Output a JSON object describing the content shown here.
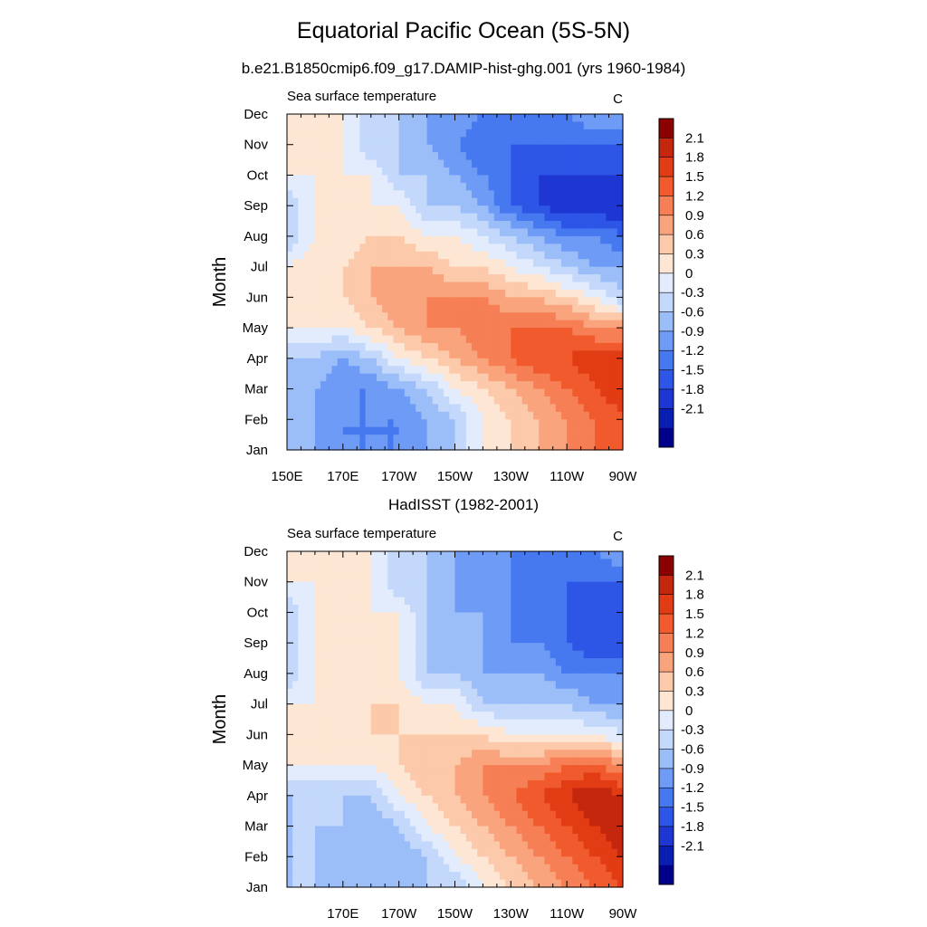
{
  "main_title": "Equatorial Pacific Ocean (5S-5N)",
  "subtitle": "b.e21.B1850cmip6.f09_g17.DAMIP-hist-ghg.001 (yrs 1960-1984)",
  "colors": [
    "#00008b",
    "#0a1eb4",
    "#1e37d2",
    "#2d55e6",
    "#4678f0",
    "#6e9bf5",
    "#9bbef9",
    "#c3d8fb",
    "#e2ecfc",
    "#fde6d3",
    "#fcc9aa",
    "#f9a47c",
    "#f67f55",
    "#f05a2d",
    "#e13c13",
    "#c4260e",
    "#8b0000"
  ],
  "colorbar_labels": [
    "2.1",
    "1.8",
    "1.5",
    "1.2",
    "0.9",
    "0.6",
    "0.3",
    "0",
    "-0.3",
    "-0.6",
    "-0.9",
    "-1.2",
    "-1.5",
    "-1.8",
    "-2.1"
  ],
  "chart_data": [
    {
      "type": "heatmap",
      "title": "",
      "left_label": "Sea surface temperature",
      "right_label": "C",
      "ylabel": "Month",
      "xlabel": "",
      "x_tick_labels": [
        "150E",
        "170E",
        "170W",
        "150W",
        "130W",
        "110W",
        "90W"
      ],
      "x_lon": [
        150,
        160,
        170,
        180,
        190,
        200,
        210,
        220,
        230,
        240,
        250,
        260,
        270
      ],
      "y_tick_labels": [
        "Jan",
        "Feb",
        "Mar",
        "Apr",
        "May",
        "Jun",
        "Jul",
        "Aug",
        "Sep",
        "Oct",
        "Nov",
        "Dec"
      ],
      "levels": [
        -2.1,
        -1.8,
        -1.5,
        -1.2,
        -0.9,
        -0.6,
        -0.3,
        0,
        0.3,
        0.6,
        0.9,
        1.2,
        1.5,
        1.8,
        2.1
      ],
      "z": [
        [
          -0.3,
          -0.6,
          -0.9,
          -0.9,
          -0.9,
          -0.6,
          -0.3,
          0.3,
          0.6,
          0.9,
          1.2,
          1.5,
          1.5
        ],
        [
          -0.3,
          -0.6,
          -0.9,
          -0.9,
          -0.9,
          -0.6,
          -0.3,
          0.3,
          0.6,
          0.9,
          1.2,
          1.5,
          1.8
        ],
        [
          -0.3,
          -0.6,
          -0.9,
          -0.9,
          -0.6,
          -0.3,
          0.3,
          0.6,
          0.9,
          1.2,
          1.5,
          1.8,
          2.0
        ],
        [
          -0.3,
          -0.3,
          -0.6,
          -0.3,
          0.3,
          0.6,
          0.9,
          1.2,
          1.5,
          1.8,
          1.8,
          2.0,
          2.0
        ],
        [
          0.3,
          0.3,
          0.3,
          0.6,
          0.9,
          1.2,
          1.2,
          1.5,
          1.5,
          1.5,
          1.5,
          1.2,
          1.2
        ],
        [
          0.3,
          0.3,
          0.6,
          0.9,
          1.2,
          1.2,
          1.2,
          1.2,
          0.9,
          0.9,
          0.6,
          0.3,
          -0.3
        ],
        [
          0.3,
          0.6,
          0.6,
          0.9,
          0.9,
          0.9,
          0.6,
          0.6,
          0.3,
          0,
          -0.3,
          -0.6,
          -0.6
        ],
        [
          -0.3,
          0.3,
          0.3,
          0.6,
          0.6,
          0.3,
          0.3,
          0,
          -0.3,
          -0.6,
          -0.9,
          -0.9,
          -1.2
        ],
        [
          -0.3,
          0.3,
          0.3,
          0.3,
          0.3,
          -0.3,
          -0.3,
          -0.6,
          -1.2,
          -1.5,
          -1.8,
          -1.8,
          -1.8
        ],
        [
          0.3,
          0.3,
          0.3,
          0.3,
          -0.3,
          -0.3,
          -0.6,
          -0.9,
          -1.2,
          -1.5,
          -1.5,
          -1.5,
          -1.5
        ],
        [
          0.3,
          0.3,
          0.3,
          -0.3,
          -0.3,
          -0.6,
          -0.9,
          -1.2,
          -1.2,
          -1.2,
          -1.2,
          -1.2,
          -1.2
        ],
        [
          0.3,
          0.3,
          0.3,
          -0.3,
          -0.3,
          -0.6,
          -0.6,
          -0.9,
          -0.9,
          -0.9,
          -0.9,
          -0.6,
          -0.6
        ]
      ]
    },
    {
      "type": "heatmap",
      "title": "HadISST (1982-2001)",
      "left_label": "Sea surface temperature",
      "right_label": "C",
      "ylabel": "Month",
      "xlabel": "",
      "x_tick_labels": [
        "170E",
        "170W",
        "150W",
        "130W",
        "110W",
        "90W"
      ],
      "x_lon": [
        150,
        160,
        170,
        180,
        190,
        200,
        210,
        220,
        230,
        240,
        250,
        260,
        270
      ],
      "y_tick_labels": [
        "Jan",
        "Feb",
        "Mar",
        "Apr",
        "May",
        "Jun",
        "Jul",
        "Aug",
        "Sep",
        "Oct",
        "Nov",
        "Dec"
      ],
      "levels": [
        -2.1,
        -1.8,
        -1.5,
        -1.2,
        -0.9,
        -0.6,
        -0.3,
        0,
        0.3,
        0.6,
        0.9,
        1.2,
        1.5,
        1.8,
        2.1
      ],
      "z": [
        [
          -0.3,
          -0.3,
          -0.6,
          -0.6,
          -0.6,
          -0.3,
          -0.3,
          0.3,
          0.6,
          0.9,
          1.2,
          1.5,
          1.8
        ],
        [
          -0.3,
          -0.3,
          -0.6,
          -0.6,
          -0.6,
          -0.3,
          0.3,
          0.6,
          0.9,
          1.2,
          1.5,
          1.8,
          2.1
        ],
        [
          -0.3,
          -0.3,
          -0.3,
          -0.6,
          -0.3,
          0.3,
          0.6,
          0.9,
          1.2,
          1.5,
          1.8,
          2.1,
          2.4
        ],
        [
          -0.3,
          -0.3,
          -0.3,
          -0.3,
          0.3,
          0.6,
          0.9,
          1.2,
          1.5,
          1.8,
          2.1,
          2.4,
          2.1
        ],
        [
          0.3,
          0.3,
          0.3,
          0.3,
          0.6,
          0.9,
          0.9,
          1.2,
          1.2,
          1.2,
          1.5,
          1.5,
          1.2
        ],
        [
          0.3,
          0.3,
          0.3,
          0.6,
          0.6,
          0.6,
          0.6,
          0.6,
          0.3,
          0.3,
          0.3,
          0.3,
          0
        ],
        [
          0.3,
          0.3,
          0.3,
          0.6,
          0.6,
          0.3,
          0.3,
          -0.3,
          -0.3,
          -0.3,
          -0.3,
          -0.6,
          -0.6
        ],
        [
          -0.3,
          0.3,
          0.3,
          0.3,
          0.3,
          -0.3,
          -0.3,
          -0.6,
          -0.6,
          -0.6,
          -0.9,
          -0.9,
          -0.9
        ],
        [
          -0.3,
          0.3,
          0.6,
          0.3,
          0.3,
          -0.3,
          -0.6,
          -0.6,
          -0.9,
          -0.9,
          -1.2,
          -1.5,
          -1.5
        ],
        [
          -0.3,
          0.3,
          0.3,
          0.3,
          0.3,
          -0.3,
          -0.6,
          -0.6,
          -0.9,
          -1.2,
          -1.2,
          -1.5,
          -1.5
        ],
        [
          0.3,
          0.3,
          0.3,
          0.3,
          -0.3,
          -0.3,
          -0.6,
          -0.9,
          -0.9,
          -1.2,
          -1.2,
          -1.2,
          -1.2
        ],
        [
          0.3,
          0.3,
          0.3,
          0.3,
          -0.3,
          -0.3,
          -0.6,
          -0.6,
          -0.9,
          -0.9,
          -0.9,
          -0.9,
          -0.6
        ]
      ]
    }
  ]
}
